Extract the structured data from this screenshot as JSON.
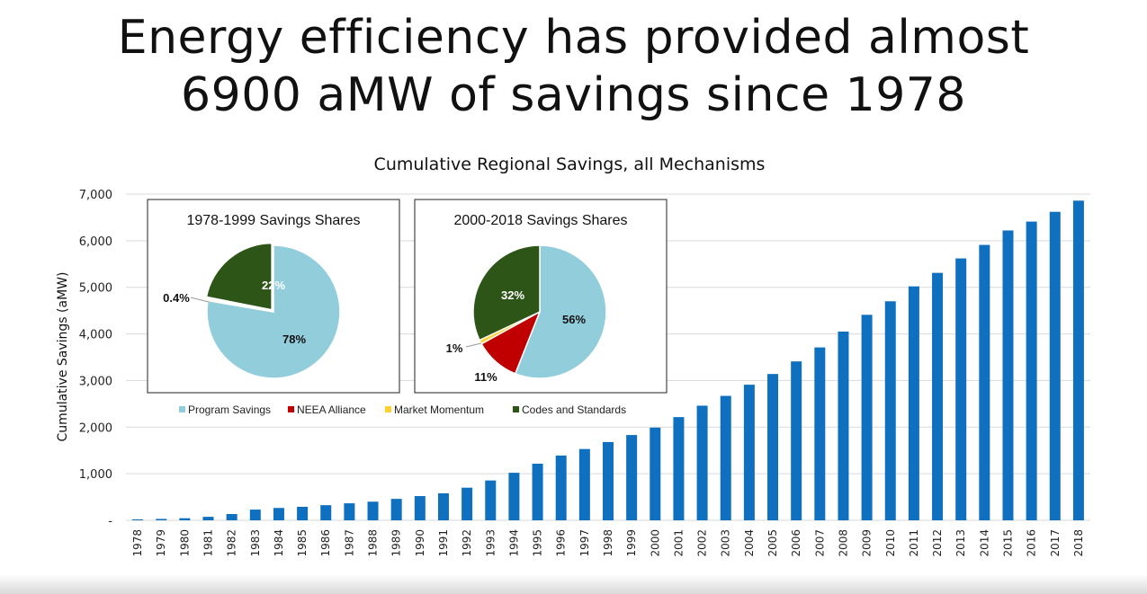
{
  "slide": {
    "title_line1": "Energy efficiency has provided almost",
    "title_line2": "6900 aMW of savings since 1978"
  },
  "colors": {
    "bar": "#1070c0",
    "program_savings": "#92cddc",
    "neea_alliance": "#c00000",
    "market_momentum": "#ffd02e",
    "codes_and_standards": "#2e5518",
    "gridline": "#d9d9d9"
  },
  "chart_data": [
    {
      "type": "bar",
      "title": "Cumulative Regional Savings, all Mechanisms",
      "xlabel": "",
      "ylabel": "Cumulative Savings (aMW)",
      "ylim": [
        0,
        7000
      ],
      "yticks": [
        "-",
        "1,000",
        "2,000",
        "3,000",
        "4,000",
        "5,000",
        "6,000",
        "7,000"
      ],
      "ytick_values": [
        0,
        1000,
        2000,
        3000,
        4000,
        5000,
        6000,
        7000
      ],
      "grid": true,
      "categories": [
        "1978",
        "1979",
        "1980",
        "1981",
        "1982",
        "1983",
        "1984",
        "1985",
        "1986",
        "1987",
        "1988",
        "1989",
        "1990",
        "1991",
        "1992",
        "1993",
        "1994",
        "1995",
        "1996",
        "1997",
        "1998",
        "1999",
        "2000",
        "2001",
        "2002",
        "2003",
        "2004",
        "2005",
        "2006",
        "2007",
        "2008",
        "2009",
        "2010",
        "2011",
        "2012",
        "2013",
        "2014",
        "2015",
        "2016",
        "2017",
        "2018"
      ],
      "values": [
        20,
        30,
        45,
        75,
        135,
        230,
        265,
        290,
        325,
        365,
        400,
        460,
        520,
        580,
        700,
        855,
        1020,
        1215,
        1390,
        1530,
        1680,
        1830,
        1990,
        2215,
        2460,
        2670,
        2910,
        3140,
        3410,
        3710,
        4050,
        4410,
        4700,
        5020,
        5310,
        5620,
        5910,
        6220,
        6410,
        6620,
        6860
      ]
    },
    {
      "type": "pie",
      "title": "1978-1999 Savings Shares",
      "slices": [
        {
          "name": "Program Savings",
          "value": 78,
          "label": "78%"
        },
        {
          "name": "NEEA Alliance",
          "value": 0,
          "label": ""
        },
        {
          "name": "Market Momentum",
          "value": 0.4,
          "label": "0.4%"
        },
        {
          "name": "Codes and Standards",
          "value": 22,
          "label": "22%"
        }
      ]
    },
    {
      "type": "pie",
      "title": "2000-2018 Savings Shares",
      "slices": [
        {
          "name": "Program Savings",
          "value": 56,
          "label": "56%"
        },
        {
          "name": "NEEA Alliance",
          "value": 11,
          "label": "11%"
        },
        {
          "name": "Market Momentum",
          "value": 1,
          "label": "1%"
        },
        {
          "name": "Codes and Standards",
          "value": 32,
          "label": "32%"
        }
      ]
    }
  ],
  "legend": [
    {
      "name": "Program Savings",
      "color": "#92cddc"
    },
    {
      "name": "NEEA Alliance",
      "color": "#c00000"
    },
    {
      "name": "Market Momentum",
      "color": "#ffd02e"
    },
    {
      "name": "Codes and Standards",
      "color": "#2e5518"
    }
  ]
}
